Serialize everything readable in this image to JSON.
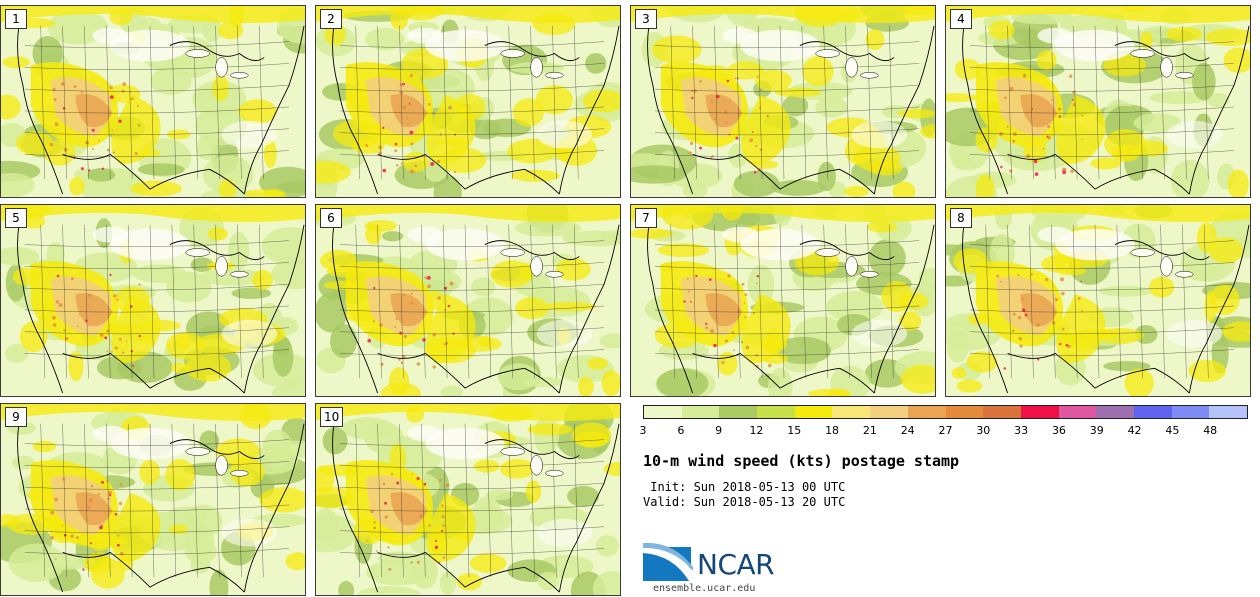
{
  "panels": [
    {
      "label": "1"
    },
    {
      "label": "2"
    },
    {
      "label": "3"
    },
    {
      "label": "4"
    },
    {
      "label": "5"
    },
    {
      "label": "6"
    },
    {
      "label": "7"
    },
    {
      "label": "8"
    },
    {
      "label": "9"
    },
    {
      "label": "10"
    }
  ],
  "colorbar": {
    "colors": [
      "#eef7c8",
      "#d6ec98",
      "#a8c964",
      "#c6e04a",
      "#f5ea0e",
      "#f8e678",
      "#f3cf80",
      "#eba552",
      "#e48a3d",
      "#d9733b",
      "#ee1246",
      "#de57a0",
      "#9e6fae",
      "#5f63ee",
      "#7e8bf5",
      "#b4c4fa"
    ],
    "ticks": [
      "3",
      "6",
      "9",
      "12",
      "15",
      "18",
      "21",
      "24",
      "27",
      "30",
      "33",
      "36",
      "39",
      "42",
      "45",
      "48"
    ]
  },
  "title": "10-m wind speed (kts) postage stamp",
  "init": " Init: Sun 2018-05-13 00 UTC",
  "valid": "Valid: Sun 2018-05-13 20 UTC",
  "logo": {
    "text": "NCAR",
    "site": "ensemble.ucar.edu"
  },
  "map_colors": {
    "light": "#eef7c8",
    "green": "#a8c964",
    "lime": "#d6ec98",
    "yellow": "#f5ea0e",
    "sand": "#f3cf80",
    "orange": "#e48a3d",
    "white": "#fdfdf6"
  }
}
